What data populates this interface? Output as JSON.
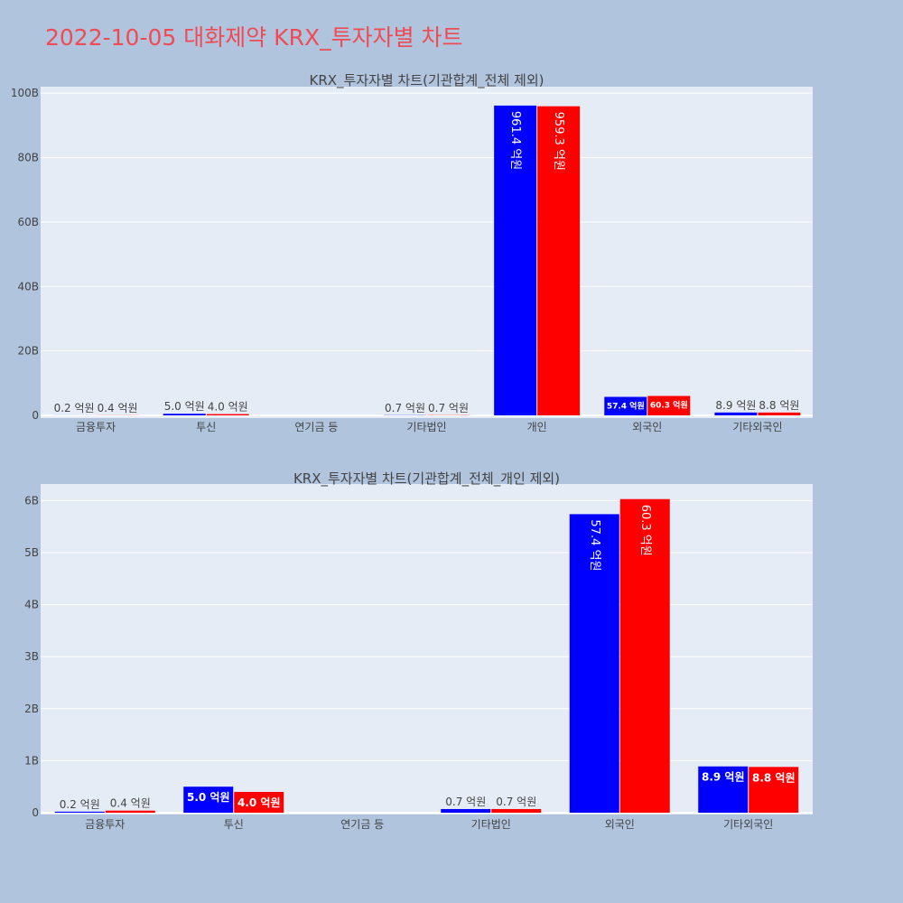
{
  "page_title": "2022-10-05 대화제약 KRX_투자자별 차트",
  "colors": {
    "background": "#b0c4de",
    "plot_bg": "#e5ecf6",
    "title": "#ef4b54",
    "series_a": "#0000ff",
    "series_b": "#ff0000"
  },
  "chart_data": [
    {
      "type": "bar",
      "title": "KRX_투자자별 차트(기관합계_전체 제외)",
      "categories": [
        "금융투자",
        "투신",
        "연기금 등",
        "기타법인",
        "개인",
        "외국인",
        "기타외국인"
      ],
      "y_ticks": [
        "0",
        "20B",
        "40B",
        "60B",
        "80B",
        "100B"
      ],
      "ylim": [
        0,
        102000000000
      ],
      "grid": true,
      "legend": "none",
      "series": [
        {
          "color": "#0000ff",
          "values": [
            20000000,
            500000000,
            0,
            70000000,
            96140000000,
            5740000000,
            890000000
          ],
          "labels": [
            "0.2 억원",
            "5.0 억원",
            "",
            "0.7 억원",
            "961.4 억원",
            "57.4 억원",
            "8.9 억원"
          ]
        },
        {
          "color": "#ff0000",
          "values": [
            40000000,
            400000000,
            0,
            70000000,
            95930000000,
            6030000000,
            880000000
          ],
          "labels": [
            "0.4 억원",
            "4.0 억원",
            "",
            "0.7 억원",
            "959.3 억원",
            "60.3 억원",
            "8.8 억원"
          ]
        }
      ]
    },
    {
      "type": "bar",
      "title": "KRX_투자자별 차트(기관합계_전체_개인 제외)",
      "categories": [
        "금융투자",
        "투신",
        "연기금 등",
        "기타법인",
        "외국인",
        "기타외국인"
      ],
      "y_ticks": [
        "0",
        "1B",
        "2B",
        "3B",
        "4B",
        "5B",
        "6B"
      ],
      "ylim": [
        0,
        6320000000
      ],
      "grid": true,
      "legend": "none",
      "series": [
        {
          "color": "#0000ff",
          "values": [
            20000000,
            500000000,
            0,
            70000000,
            5740000000,
            890000000
          ],
          "labels": [
            "0.2 억원",
            "5.0 억원",
            "",
            "0.7 억원",
            "57.4 억원",
            "8.9 억원"
          ]
        },
        {
          "color": "#ff0000",
          "values": [
            40000000,
            400000000,
            0,
            70000000,
            6030000000,
            880000000
          ],
          "labels": [
            "0.4 억원",
            "4.0 억원",
            "",
            "0.7 억원",
            "60.3 억원",
            "8.8 억원"
          ]
        }
      ]
    }
  ]
}
